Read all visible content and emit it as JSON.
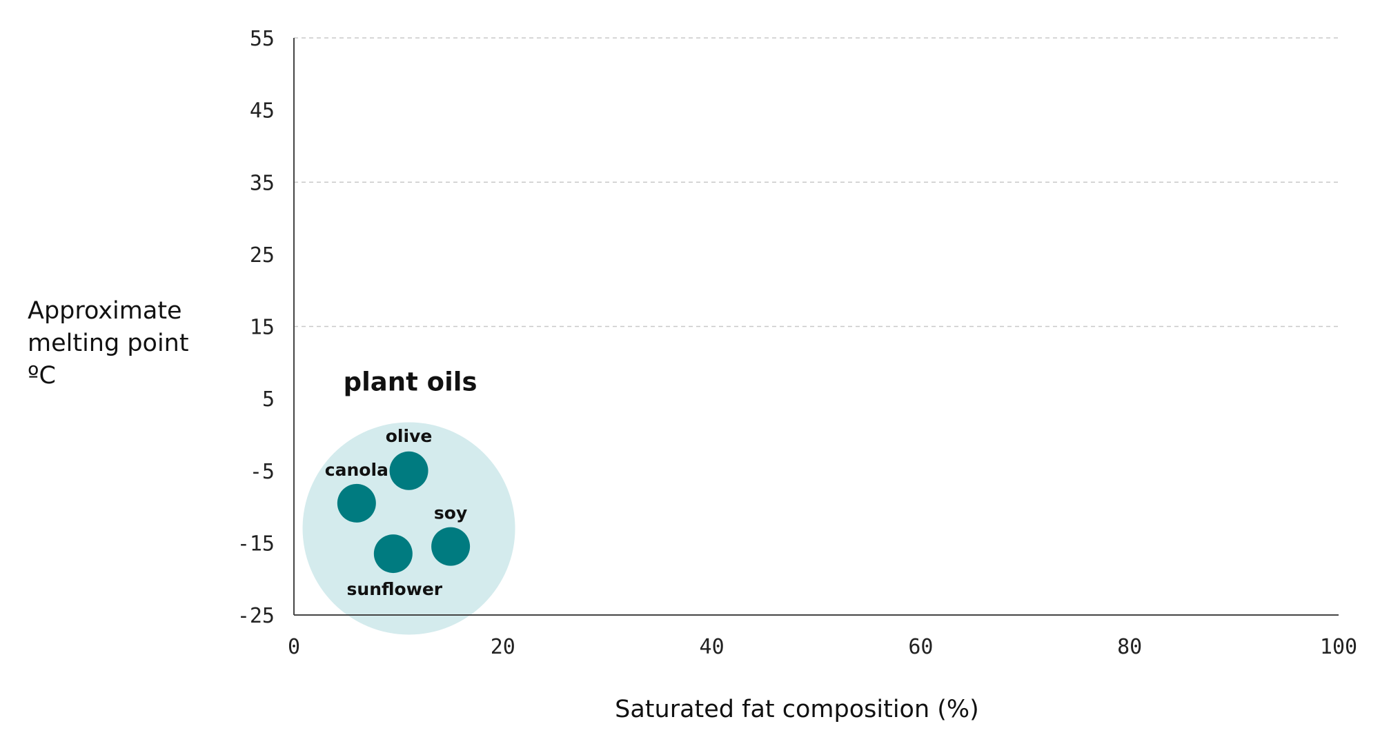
{
  "chart_data": {
    "type": "scatter",
    "xlabel": "Saturated fat composition (%)",
    "ylabel": [
      "Approximate",
      "melting point",
      "ºC"
    ],
    "xlim": [
      0,
      100
    ],
    "ylim": [
      -25,
      55
    ],
    "xticks": [
      0,
      20,
      40,
      60,
      80,
      100
    ],
    "yticks": [
      55,
      45,
      35,
      25,
      15,
      5,
      -5,
      -15,
      -25
    ],
    "grid": "horizontal dashed",
    "group": {
      "label": "plant oils",
      "center": [
        11,
        -13
      ],
      "color": "#d4ebed"
    },
    "point_color": "#007b80",
    "points": [
      {
        "label": "olive",
        "x": 11,
        "y": -5
      },
      {
        "label": "canola",
        "x": 6,
        "y": -9.5
      },
      {
        "label": "soy",
        "x": 15,
        "y": -15.5
      },
      {
        "label": "sunflower",
        "x": 9.5,
        "y": -16.5
      }
    ]
  }
}
